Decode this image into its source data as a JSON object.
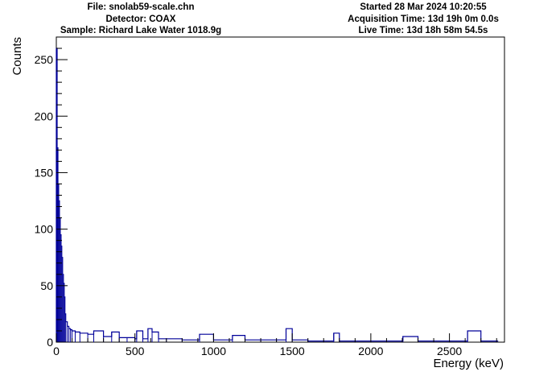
{
  "header": {
    "file": "File: snolab59-scale.chn",
    "detector": "Detector: COAX",
    "sample": "Sample: Richard Lake Water 1018.9g",
    "started": "Started 28 Mar 2024 10:20:55",
    "acquisition_time": "Acquisition Time: 13d 19h 0m 0.0s",
    "live_time": "Live Time: 13d 18h 58m 54.5s"
  },
  "colors": {
    "series": "#000099",
    "axis": "#000000",
    "background": "#ffffff"
  },
  "chart_data": {
    "type": "line",
    "style": "histogram",
    "xlabel": "Energy (keV)",
    "ylabel": "Counts",
    "xlim": [
      0,
      2850
    ],
    "ylim": [
      0,
      270
    ],
    "xticks": [
      0,
      500,
      1000,
      1500,
      2000,
      2500
    ],
    "xtick_labels": [
      "0",
      "500",
      "1000",
      "1500",
      "2000",
      "2500"
    ],
    "yticks": [
      0,
      50,
      100,
      150,
      200,
      250
    ],
    "ytick_labels": [
      "0",
      "50",
      "100",
      "150",
      "200",
      "250"
    ],
    "grid": false,
    "legend": "none",
    "series": [
      {
        "x": [
          0,
          5,
          10,
          15,
          20,
          25,
          30,
          35,
          40,
          45,
          50,
          55,
          60,
          70,
          80,
          90,
          100,
          120,
          150,
          200,
          238,
          300,
          352,
          400,
          450,
          500,
          511,
          550,
          583,
          609,
          650,
          700,
          800,
          900,
          911,
          1000,
          1100,
          1120,
          1200,
          1300,
          1400,
          1461,
          1500,
          1600,
          1700,
          1764,
          1800,
          1900,
          2000,
          2100,
          2204,
          2300,
          2400,
          2500,
          2615,
          2700,
          2800
        ],
        "values": [
          260,
          172,
          140,
          125,
          110,
          95,
          85,
          75,
          60,
          52,
          40,
          25,
          18,
          14,
          12,
          11,
          10,
          9,
          8,
          7,
          10,
          5,
          9,
          4,
          4,
          3,
          10,
          3,
          12,
          9,
          3,
          3,
          2,
          2,
          7,
          2,
          2,
          6,
          2,
          2,
          2,
          12,
          2,
          1,
          1,
          8,
          1,
          1,
          1,
          1,
          5,
          1,
          1,
          1,
          10,
          1,
          1
        ]
      }
    ]
  }
}
